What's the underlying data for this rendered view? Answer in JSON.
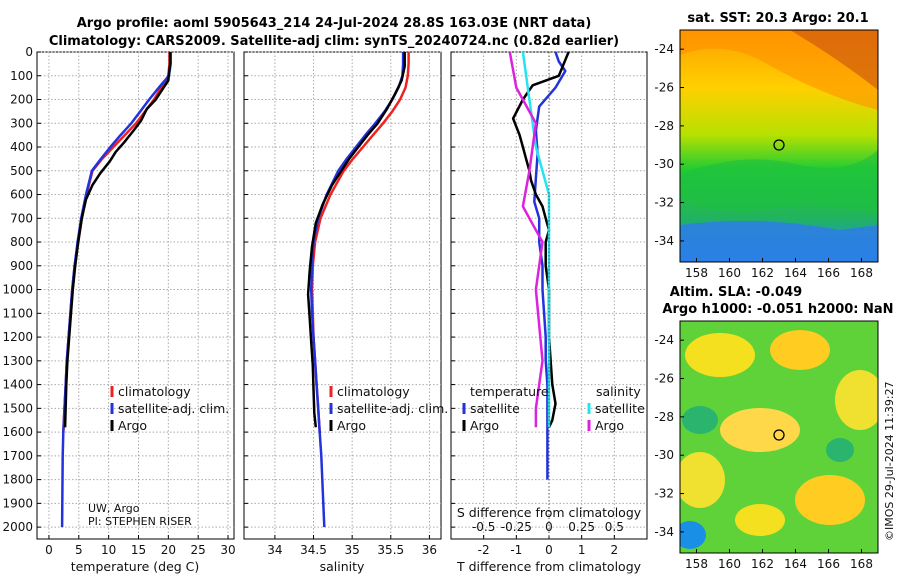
{
  "title": {
    "line1": "Argo profile: aoml 5905643_214 24-Jul-2024 28.8S 163.03E (NRT data)",
    "line2": "Climatology: CARS2009. Satellite-adj clim: synTS_20240724.nc (0.82d earlier)"
  },
  "depth_ticks": [
    "0",
    "100",
    "200",
    "300",
    "400",
    "500",
    "600",
    "700",
    "800",
    "900",
    "1000",
    "1100",
    "1200",
    "1300",
    "1400",
    "1500",
    "1600",
    "1700",
    "1800",
    "1900",
    "2000"
  ],
  "credit": {
    "line1": "UW, Argo",
    "line2": "PI: STEPHEN RISER"
  },
  "legend": {
    "climatology": "climatology",
    "satellite": "satellite-adj. clim.",
    "argo": "Argo"
  },
  "diff_legend": {
    "temperature_head": "temperature",
    "salinity_head": "salinity",
    "satellite": "satellite",
    "argo": "Argo"
  },
  "colors": {
    "climatology": "#ee2222",
    "satellite": "#2233dd",
    "argo": "#000000",
    "sat_sal": "#22e5ee",
    "argo_sal": "#dd22dd"
  },
  "map_sst": {
    "title": "sat. SST: 20.3 Argo: 20.1",
    "lat_ticks": [
      "-24",
      "-26",
      "-28",
      "-30",
      "-32",
      "-34"
    ],
    "lon_ticks": [
      "158",
      "160",
      "162",
      "164",
      "166",
      "168"
    ]
  },
  "map_sla": {
    "title1": "Altim. SLA: -0.049",
    "title2": "Argo h1000: -0.051 h2000: NaN",
    "lat_ticks": [
      "-24",
      "-26",
      "-28",
      "-30",
      "-32",
      "-34"
    ],
    "lon_ticks": [
      "158",
      "160",
      "162",
      "164",
      "166",
      "168"
    ]
  },
  "side_stamp": "©IMOS 29-Jul-2024 11:39:27",
  "chart_data": [
    {
      "type": "line",
      "xlabel": "temperature (deg C)",
      "ylabel": "depth",
      "xlim": [
        -2,
        31
      ],
      "ylim": [
        2050,
        0
      ],
      "xticks": [
        "0",
        "5",
        "10",
        "15",
        "20",
        "25",
        "30"
      ],
      "series": [
        {
          "name": "climatology",
          "x": [
            20.2,
            20.2,
            20.0,
            18.8,
            17.6,
            16.1,
            14.6,
            12.7,
            10.8,
            8.9,
            7.3,
            6.3,
            5.5,
            4.9,
            4.3,
            3.9,
            3.6,
            3.3,
            3.0,
            2.8,
            2.6,
            2.4
          ],
          "y": [
            0,
            50,
            100,
            150,
            200,
            250,
            300,
            350,
            400,
            450,
            500,
            600,
            700,
            800,
            900,
            1000,
            1100,
            1200,
            1300,
            1400,
            1500,
            1600
          ]
        },
        {
          "name": "satellite-adj. clim.",
          "x": [
            20.4,
            20.4,
            20.1,
            18.4,
            16.8,
            15.3,
            13.8,
            12.0,
            10.3,
            8.7,
            7.2,
            6.2,
            5.4,
            4.8,
            4.3,
            3.9,
            3.6,
            3.3,
            3.0,
            2.8,
            2.6,
            2.4,
            2.3,
            2.25,
            2.2
          ],
          "y": [
            0,
            50,
            100,
            150,
            200,
            250,
            300,
            350,
            400,
            450,
            500,
            600,
            700,
            800,
            900,
            1000,
            1100,
            1200,
            1300,
            1400,
            1500,
            1600,
            1700,
            1850,
            2000
          ]
        },
        {
          "name": "Argo",
          "x": [
            20.3,
            20.3,
            20.0,
            19.2,
            17.9,
            16.4,
            15.4,
            14.2,
            12.6,
            11.2,
            10.2,
            8.6,
            7.3,
            6.2,
            5.5,
            4.9,
            4.4,
            4.0,
            3.7,
            3.4,
            3.1,
            2.9,
            2.7
          ],
          "y": [
            0,
            50,
            120,
            150,
            200,
            240,
            290,
            330,
            380,
            420,
            460,
            510,
            560,
            620,
            700,
            800,
            900,
            1000,
            1100,
            1200,
            1300,
            1400,
            1580
          ]
        }
      ]
    },
    {
      "type": "line",
      "xlabel": "salinity",
      "ylabel": "depth",
      "xlim": [
        33.6,
        36.15
      ],
      "ylim": [
        2050,
        0
      ],
      "xticks": [
        "34",
        "34.5",
        "35",
        "35.5",
        "36"
      ],
      "series": [
        {
          "name": "climatology",
          "x": [
            35.73,
            35.73,
            35.72,
            35.69,
            35.62,
            35.52,
            35.4,
            35.27,
            35.14,
            35.01,
            34.89,
            34.72,
            34.59,
            34.52,
            34.49,
            34.48,
            34.49,
            34.5,
            34.52,
            34.54,
            34.56,
            34.58
          ],
          "y": [
            0,
            50,
            100,
            150,
            200,
            250,
            300,
            350,
            400,
            450,
            500,
            600,
            700,
            800,
            900,
            1000,
            1100,
            1200,
            1300,
            1400,
            1500,
            1600
          ]
        },
        {
          "name": "satellite-adj. clim.",
          "x": [
            35.66,
            35.66,
            35.65,
            35.6,
            35.52,
            35.42,
            35.3,
            35.17,
            35.05,
            34.93,
            34.82,
            34.67,
            34.56,
            34.5,
            34.48,
            34.47,
            34.48,
            34.5,
            34.52,
            34.54,
            34.56,
            34.58,
            34.6,
            34.62,
            34.64
          ],
          "y": [
            0,
            50,
            100,
            150,
            200,
            250,
            300,
            350,
            400,
            450,
            500,
            600,
            700,
            800,
            900,
            1000,
            1100,
            1200,
            1300,
            1400,
            1500,
            1600,
            1700,
            1850,
            2000
          ]
        },
        {
          "name": "Argo",
          "x": [
            35.68,
            35.68,
            35.64,
            35.55,
            35.45,
            35.33,
            35.2,
            35.08,
            34.96,
            34.86,
            34.74,
            34.62,
            34.53,
            34.48,
            34.45,
            34.43,
            34.45,
            34.47,
            34.49,
            34.5,
            34.51,
            34.53
          ],
          "y": [
            0,
            60,
            120,
            180,
            240,
            300,
            350,
            400,
            450,
            500,
            560,
            640,
            720,
            820,
            920,
            1020,
            1120,
            1220,
            1320,
            1420,
            1520,
            1580
          ]
        }
      ]
    },
    {
      "type": "line",
      "xlabel": "T difference from climatology",
      "top_label": "S difference from climatology",
      "ylabel": "depth",
      "xlim": [
        -3,
        3
      ],
      "ylim": [
        2050,
        0
      ],
      "xticks": [
        "-2",
        "-1",
        "0",
        "1",
        "2"
      ],
      "top_ticks": [
        "-0.5",
        "-0.25",
        "0",
        "0.25",
        "0.5"
      ],
      "series": [
        {
          "name": "temperature satellite",
          "x": [
            0.2,
            0.3,
            0.5,
            0.2,
            -0.3,
            -0.4,
            -0.35,
            -0.4,
            -0.45,
            -0.3,
            -0.3,
            -0.2,
            -0.2,
            -0.15,
            -0.1,
            -0.1,
            -0.05,
            -0.05,
            -0.05,
            -0.05,
            -0.05
          ],
          "y": [
            0,
            40,
            80,
            150,
            230,
            330,
            430,
            530,
            630,
            700,
            800,
            900,
            1000,
            1100,
            1200,
            1300,
            1400,
            1500,
            1600,
            1700,
            1800
          ]
        },
        {
          "name": "temperature Argo",
          "x": [
            0.6,
            0.3,
            -0.5,
            -0.8,
            -1.1,
            -0.9,
            -0.8,
            -0.7,
            -0.6,
            -0.55,
            -0.4,
            -0.2,
            -0.1,
            0.0,
            -0.1,
            -0.1,
            0.0,
            0.0,
            0.0,
            0.1,
            0.2,
            0.1,
            0.0
          ],
          "y": [
            0,
            100,
            140,
            200,
            280,
            350,
            400,
            450,
            500,
            540,
            600,
            650,
            700,
            750,
            800,
            900,
            1000,
            1100,
            1200,
            1400,
            1480,
            1550,
            1580
          ]
        },
        {
          "name": "salinity satellite",
          "x": [
            -0.2,
            -0.15,
            -0.1,
            0.0,
            0.0,
            0.0,
            0.0,
            0.0,
            0.0
          ],
          "y": [
            0,
            200,
            400,
            600,
            800,
            1000,
            1200,
            1400,
            1580
          ]
        },
        {
          "name": "salinity Argo",
          "x": [
            -0.3,
            -0.25,
            -0.1,
            -0.15,
            -0.2,
            -0.15,
            -0.05,
            -0.1,
            -0.05,
            -0.1,
            -0.1
          ],
          "y": [
            0,
            150,
            300,
            500,
            650,
            700,
            800,
            1000,
            1300,
            1500,
            1580
          ]
        }
      ]
    }
  ]
}
